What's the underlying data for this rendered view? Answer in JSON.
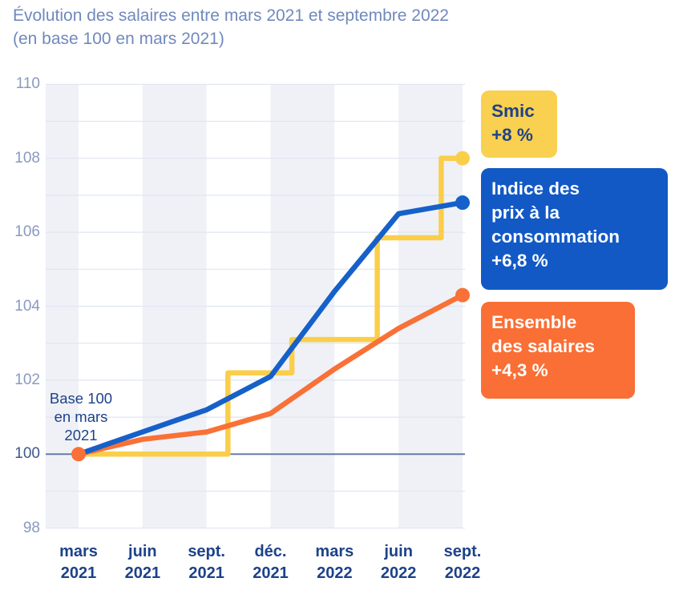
{
  "title": {
    "line1": "Évolution des salaires entre mars 2021 et septembre 2022",
    "line2": "(en base 100 en mars 2021)"
  },
  "annotation": {
    "line1": "Base 100",
    "line2": "en mars",
    "line3": "2021"
  },
  "legend": {
    "position": "right",
    "items": [
      {
        "id": "smic",
        "lines": [
          "Smic",
          "+8 %"
        ],
        "bg": "#F9D04F",
        "fg": "#1D4289"
      },
      {
        "id": "ipc",
        "lines": [
          "Indice des",
          "prix à la",
          "consommation",
          "+6,8 %"
        ],
        "bg": "#1259C6",
        "fg": "#FFFFFF"
      },
      {
        "id": "salaires",
        "lines": [
          "Ensemble",
          "des salaires",
          "+4,3 %"
        ],
        "bg": "#F96F36",
        "fg": "#FFFFFF"
      }
    ]
  },
  "chart_data": {
    "type": "line",
    "title": "Évolution des salaires entre mars 2021 et septembre 2022 (en base 100 en mars 2021)",
    "xlabel": "",
    "ylabel": "",
    "x_unit": "months_since_mars_2021",
    "ylim": [
      98,
      110
    ],
    "grid": "horizontal-every-1",
    "alternating_bands_between_quarters": true,
    "y_ticks": [
      110,
      108,
      106,
      104,
      102,
      100,
      98
    ],
    "baseline_value": 100,
    "x_ticks": [
      {
        "m": 0,
        "lines": [
          "mars",
          "2021"
        ]
      },
      {
        "m": 3,
        "lines": [
          "juin",
          "2021"
        ]
      },
      {
        "m": 6,
        "lines": [
          "sept.",
          "2021"
        ]
      },
      {
        "m": 9,
        "lines": [
          "déc.",
          "2021"
        ]
      },
      {
        "m": 12,
        "lines": [
          "mars",
          "2022"
        ]
      },
      {
        "m": 15,
        "lines": [
          "juin",
          "2022"
        ]
      },
      {
        "m": 18,
        "lines": [
          "sept.",
          "2022"
        ]
      }
    ],
    "series": [
      {
        "name": "Smic",
        "final_change": "+8 %",
        "color": "#FBCE4A",
        "shape": "step",
        "points": [
          [
            0,
            100
          ],
          [
            7,
            100
          ],
          [
            7,
            102.2
          ],
          [
            10,
            102.2
          ],
          [
            10,
            103.1
          ],
          [
            14,
            103.1
          ],
          [
            14,
            105.85
          ],
          [
            17,
            105.85
          ],
          [
            17,
            108
          ],
          [
            18,
            108
          ]
        ],
        "end_dot": [
          18,
          108
        ]
      },
      {
        "name": "Ensemble des salaires",
        "final_change": "+4,3 %",
        "color": "#F97136",
        "shape": "line",
        "points": [
          [
            0,
            100
          ],
          [
            3,
            100.4
          ],
          [
            6,
            100.6
          ],
          [
            9,
            101.1
          ],
          [
            12,
            102.3
          ],
          [
            15,
            103.4
          ],
          [
            18,
            104.3
          ]
        ],
        "start_dot": [
          0,
          100
        ],
        "end_dot": [
          18,
          104.3
        ]
      },
      {
        "name": "Indice des prix à la consommation",
        "final_change": "+6,8 %",
        "color": "#1660C9",
        "shape": "line",
        "points": [
          [
            0,
            100
          ],
          [
            3,
            100.6
          ],
          [
            6,
            101.2
          ],
          [
            9,
            102.1
          ],
          [
            12,
            104.4
          ],
          [
            15,
            106.5
          ],
          [
            18,
            106.8
          ]
        ],
        "end_dot": [
          18,
          106.8
        ]
      }
    ]
  },
  "colors": {
    "background": "#FFFFFF",
    "title_text": "#7089BC",
    "axis_tick_text": "#8A99C0",
    "axis_tick_text_baseline": "#3F568E",
    "x_tick_text": "#1D4289",
    "gridline": "#DFE5F1",
    "baseline_line": "#5E74A0",
    "band": "#EFF1F7",
    "smic": "#FBCE4A",
    "ipc": "#1660C9",
    "salaires": "#F97136"
  }
}
